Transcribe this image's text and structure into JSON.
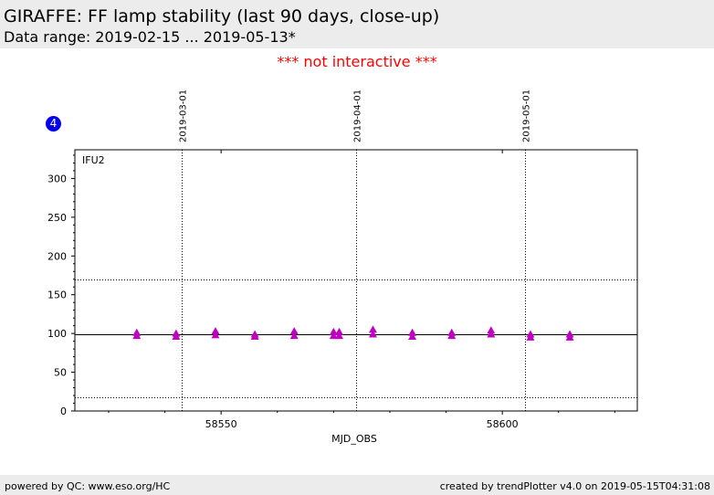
{
  "header": {
    "title": "GIRAFFE: FF lamp stability (last 90 days, close-up)",
    "subtitle": "Data range: 2019-02-15 ... 2019-05-13*"
  },
  "notice": "*** not interactive ***",
  "badge": "4",
  "footer": {
    "left": "powered by QC: www.eso.org/HC",
    "right": "created by trendPlotter v4.0 on 2019-05-15T04:31:08"
  },
  "colors": {
    "marker": "#c000c0",
    "notice": "#ff0000",
    "badge": "#0000ee"
  },
  "chart_data": {
    "type": "scatter",
    "panel_label": "IFU2",
    "xlabel": "MJD_OBS",
    "ylabel": "",
    "xlim": [
      58524,
      58624
    ],
    "ylim": [
      0,
      337
    ],
    "x_ticks": [
      58550,
      58600
    ],
    "y_ticks": [
      0,
      50,
      100,
      150,
      200,
      250,
      300
    ],
    "date_markers": [
      {
        "mjd": 58543,
        "label": "2019-03-01"
      },
      {
        "mjd": 58574,
        "label": "2019-04-01"
      },
      {
        "mjd": 58604,
        "label": "2019-05-01"
      }
    ],
    "reference_line": 99,
    "limit_lines": [
      170,
      18
    ],
    "marker": "triangle",
    "points": [
      {
        "x": 58535,
        "y": 101
      },
      {
        "x": 58535,
        "y": 97
      },
      {
        "x": 58542,
        "y": 100
      },
      {
        "x": 58542,
        "y": 96
      },
      {
        "x": 58549,
        "y": 103
      },
      {
        "x": 58549,
        "y": 98
      },
      {
        "x": 58556,
        "y": 99
      },
      {
        "x": 58556,
        "y": 96
      },
      {
        "x": 58563,
        "y": 103
      },
      {
        "x": 58563,
        "y": 97
      },
      {
        "x": 58570,
        "y": 102
      },
      {
        "x": 58570,
        "y": 97
      },
      {
        "x": 58571,
        "y": 102
      },
      {
        "x": 58571,
        "y": 97
      },
      {
        "x": 58577,
        "y": 105
      },
      {
        "x": 58577,
        "y": 99
      },
      {
        "x": 58584,
        "y": 101
      },
      {
        "x": 58584,
        "y": 96
      },
      {
        "x": 58591,
        "y": 101
      },
      {
        "x": 58591,
        "y": 97
      },
      {
        "x": 58598,
        "y": 104
      },
      {
        "x": 58598,
        "y": 99
      },
      {
        "x": 58605,
        "y": 99
      },
      {
        "x": 58605,
        "y": 95
      },
      {
        "x": 58612,
        "y": 99
      },
      {
        "x": 58612,
        "y": 95
      }
    ]
  }
}
